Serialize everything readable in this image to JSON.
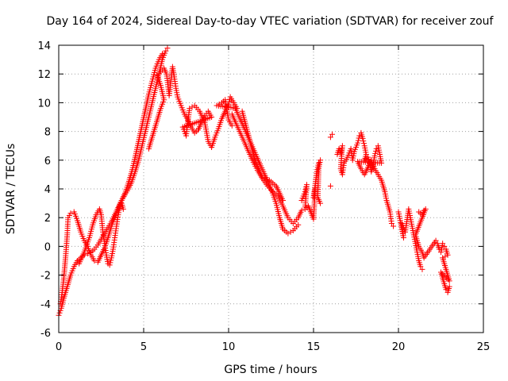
{
  "chart_data": {
    "type": "scatter",
    "title": "Day 164 of 2024, Sidereal Day-to-day VTEC variation (SDTVAR) for receiver zouf",
    "xlabel": "GPS time / hours",
    "ylabel": "SDTVAR / TECUs",
    "xlim": [
      0,
      25
    ],
    "ylim": [
      -6,
      14
    ],
    "xticks": [
      0,
      5,
      10,
      15,
      20,
      25
    ],
    "yticks": [
      -6,
      -4,
      -2,
      0,
      2,
      4,
      6,
      8,
      10,
      12,
      14
    ],
    "grid": true,
    "marker": "+",
    "color": "#ff0000",
    "series": [
      {
        "name": "main band",
        "points": [
          [
            0.0,
            -4.8
          ],
          [
            0.15,
            -4.3
          ],
          [
            0.3,
            -3.6
          ],
          [
            0.5,
            -2.8
          ],
          [
            0.7,
            -2.0
          ],
          [
            0.9,
            -1.4
          ],
          [
            1.1,
            -1.0
          ],
          [
            1.3,
            -0.8
          ],
          [
            1.5,
            -0.6
          ],
          [
            1.7,
            -0.5
          ],
          [
            1.9,
            -0.4
          ],
          [
            2.1,
            -0.2
          ],
          [
            2.3,
            0.1
          ],
          [
            2.5,
            0.5
          ],
          [
            2.7,
            0.9
          ],
          [
            2.9,
            1.3
          ],
          [
            3.1,
            1.7
          ],
          [
            3.3,
            2.2
          ],
          [
            3.5,
            2.7
          ],
          [
            3.7,
            3.2
          ],
          [
            3.9,
            3.6
          ],
          [
            4.1,
            4.0
          ],
          [
            4.3,
            4.5
          ],
          [
            4.5,
            5.2
          ],
          [
            4.7,
            6.0
          ],
          [
            4.9,
            7.0
          ],
          [
            5.1,
            8.0
          ],
          [
            5.3,
            9.0
          ],
          [
            5.5,
            10.0
          ],
          [
            5.7,
            11.0
          ],
          [
            5.9,
            12.0
          ],
          [
            6.1,
            13.0
          ],
          [
            6.3,
            13.6
          ],
          [
            6.4,
            13.8
          ]
        ]
      },
      {
        "name": "upper band",
        "points": [
          [
            0.1,
            -4.0
          ],
          [
            0.2,
            -3.2
          ],
          [
            0.3,
            -2.2
          ],
          [
            0.4,
            -0.8
          ],
          [
            0.5,
            0.8
          ],
          [
            0.55,
            2.0
          ],
          [
            0.7,
            2.3
          ],
          [
            0.9,
            2.4
          ],
          [
            1.1,
            1.8
          ],
          [
            1.3,
            1.0
          ],
          [
            1.5,
            0.4
          ],
          [
            1.7,
            0.0
          ],
          [
            1.9,
            -0.6
          ],
          [
            2.1,
            -1.0
          ],
          [
            2.3,
            -1.1
          ],
          [
            2.5,
            -0.6
          ],
          [
            2.7,
            -0.1
          ],
          [
            2.9,
            0.6
          ],
          [
            3.1,
            1.4
          ],
          [
            3.3,
            2.0
          ],
          [
            3.5,
            2.6
          ],
          [
            3.7,
            3.2
          ],
          [
            3.9,
            3.7
          ],
          [
            4.1,
            4.4
          ],
          [
            4.3,
            5.2
          ],
          [
            4.5,
            6.2
          ],
          [
            4.7,
            7.3
          ],
          [
            4.9,
            8.4
          ],
          [
            5.1,
            9.5
          ],
          [
            5.3,
            10.6
          ],
          [
            5.5,
            11.5
          ],
          [
            5.7,
            12.4
          ],
          [
            5.9,
            13.0
          ],
          [
            6.1,
            13.4
          ]
        ]
      },
      {
        "name": "left loop",
        "points": [
          [
            1.2,
            -1.2
          ],
          [
            1.5,
            -0.4
          ],
          [
            1.8,
            0.6
          ],
          [
            2.0,
            1.5
          ],
          [
            2.2,
            2.2
          ],
          [
            2.4,
            2.6
          ],
          [
            2.5,
            2.2
          ],
          [
            2.6,
            1.0
          ],
          [
            2.7,
            0.2
          ],
          [
            2.8,
            -0.6
          ],
          [
            2.9,
            -1.2
          ],
          [
            3.0,
            -1.3
          ],
          [
            3.1,
            -0.8
          ],
          [
            3.2,
            -0.2
          ],
          [
            3.3,
            0.6
          ],
          [
            3.4,
            1.4
          ],
          [
            3.5,
            2.2
          ],
          [
            3.6,
            2.8
          ],
          [
            3.7,
            3.0
          ],
          [
            3.8,
            2.6
          ]
        ]
      },
      {
        "name": "post-peak cluster",
        "points": [
          [
            5.3,
            6.8
          ],
          [
            5.5,
            7.6
          ],
          [
            5.7,
            8.4
          ],
          [
            5.9,
            9.2
          ],
          [
            6.0,
            9.6
          ],
          [
            6.2,
            10.2
          ],
          [
            6.0,
            11.2
          ],
          [
            5.8,
            11.9
          ],
          [
            6.2,
            12.4
          ],
          [
            6.35,
            12.0
          ],
          [
            6.5,
            10.5
          ],
          [
            6.7,
            12.5
          ],
          [
            6.8,
            11.8
          ],
          [
            6.9,
            11.0
          ],
          [
            7.0,
            10.4
          ],
          [
            7.2,
            9.8
          ],
          [
            7.4,
            9.2
          ],
          [
            7.6,
            8.8
          ],
          [
            7.8,
            8.3
          ],
          [
            8.0,
            7.9
          ],
          [
            8.2,
            8.1
          ],
          [
            8.4,
            8.6
          ],
          [
            8.6,
            9.1
          ],
          [
            8.8,
            9.4
          ],
          [
            9.0,
            9.0
          ],
          [
            7.3,
            8.3
          ],
          [
            7.5,
            7.7
          ],
          [
            7.7,
            9.6
          ],
          [
            8.0,
            9.8
          ],
          [
            8.3,
            9.4
          ],
          [
            8.6,
            8.6
          ],
          [
            8.8,
            7.3
          ],
          [
            9.0,
            6.9
          ],
          [
            9.2,
            7.6
          ],
          [
            9.4,
            8.2
          ],
          [
            9.6,
            8.9
          ],
          [
            9.8,
            9.4
          ],
          [
            10.0,
            9.9
          ],
          [
            10.1,
            10.4
          ],
          [
            10.3,
            10.0
          ],
          [
            10.5,
            9.6
          ],
          [
            9.3,
            9.8
          ],
          [
            9.6,
            10.0
          ],
          [
            9.8,
            10.2
          ],
          [
            10.0,
            8.8
          ],
          [
            10.2,
            8.4
          ]
        ]
      },
      {
        "name": "descent bands",
        "points": [
          [
            10.2,
            9.2
          ],
          [
            10.5,
            8.4
          ],
          [
            10.8,
            7.6
          ],
          [
            11.1,
            6.8
          ],
          [
            11.4,
            6.0
          ],
          [
            11.7,
            5.3
          ],
          [
            12.0,
            4.7
          ],
          [
            12.3,
            4.2
          ],
          [
            12.6,
            3.8
          ],
          [
            12.9,
            3.5
          ],
          [
            13.2,
            2.8
          ],
          [
            13.5,
            2.0
          ],
          [
            13.8,
            1.6
          ],
          [
            14.1,
            2.0
          ],
          [
            14.3,
            2.5
          ],
          [
            10.4,
            9.6
          ],
          [
            10.7,
            8.8
          ],
          [
            11.0,
            8.0
          ],
          [
            11.3,
            7.2
          ],
          [
            11.6,
            6.4
          ],
          [
            11.9,
            5.6
          ],
          [
            12.2,
            4.8
          ],
          [
            12.5,
            4.0
          ],
          [
            12.8,
            3.0
          ],
          [
            13.0,
            2.0
          ],
          [
            13.2,
            1.2
          ],
          [
            13.5,
            0.9
          ],
          [
            13.8,
            1.1
          ],
          [
            14.1,
            1.5
          ],
          [
            10.8,
            9.4
          ],
          [
            11.2,
            7.6
          ],
          [
            11.6,
            5.8
          ],
          [
            12.0,
            4.8
          ],
          [
            12.4,
            4.6
          ],
          [
            12.8,
            4.2
          ],
          [
            13.2,
            3.2
          ]
        ]
      },
      {
        "name": "scattered segments",
        "points": [
          [
            14.3,
            3.2
          ],
          [
            14.5,
            3.8
          ],
          [
            14.6,
            4.3
          ],
          [
            14.5,
            2.6
          ],
          [
            14.7,
            2.8
          ],
          [
            15.0,
            1.9
          ],
          [
            15.1,
            4.0
          ],
          [
            15.0,
            3.4
          ],
          [
            15.2,
            5.2
          ],
          [
            15.3,
            5.8
          ],
          [
            15.4,
            6.0
          ],
          [
            15.3,
            5.4
          ],
          [
            15.25,
            3.4
          ],
          [
            15.4,
            3.0
          ],
          [
            16.0,
            7.6
          ],
          [
            16.1,
            7.8
          ],
          [
            16.0,
            4.2
          ],
          [
            16.4,
            6.4
          ],
          [
            16.5,
            6.8
          ],
          [
            16.6,
            6.5
          ],
          [
            16.7,
            7.0
          ],
          [
            16.6,
            5.4
          ],
          [
            16.7,
            5.0
          ],
          [
            16.8,
            5.8
          ],
          [
            17.0,
            6.2
          ],
          [
            17.2,
            6.8
          ],
          [
            17.3,
            6.0
          ],
          [
            17.4,
            6.6
          ],
          [
            17.6,
            7.2
          ],
          [
            17.7,
            7.7
          ],
          [
            17.8,
            7.9
          ],
          [
            17.9,
            7.5
          ],
          [
            18.0,
            7.0
          ],
          [
            18.1,
            6.4
          ],
          [
            18.0,
            6.0
          ],
          [
            18.2,
            6.2
          ],
          [
            18.3,
            5.8
          ],
          [
            18.4,
            5.2
          ],
          [
            18.5,
            5.6
          ],
          [
            18.6,
            6.3
          ],
          [
            18.7,
            6.8
          ],
          [
            18.8,
            7.0
          ],
          [
            18.9,
            6.4
          ],
          [
            19.0,
            5.8
          ],
          [
            17.6,
            5.9
          ],
          [
            17.8,
            5.4
          ],
          [
            18.0,
            5.0
          ],
          [
            18.2,
            5.5
          ],
          [
            18.4,
            6.0
          ],
          [
            18.6,
            5.4
          ],
          [
            18.8,
            5.0
          ],
          [
            19.0,
            4.6
          ],
          [
            19.1,
            4.2
          ],
          [
            19.2,
            3.8
          ],
          [
            19.3,
            3.2
          ],
          [
            19.4,
            2.8
          ],
          [
            19.5,
            2.4
          ],
          [
            19.6,
            1.6
          ],
          [
            19.7,
            1.4
          ]
        ]
      },
      {
        "name": "late segments",
        "points": [
          [
            20.0,
            2.4
          ],
          [
            20.1,
            1.8
          ],
          [
            20.2,
            1.2
          ],
          [
            20.3,
            0.6
          ],
          [
            20.2,
            1.6
          ],
          [
            20.4,
            1.0
          ],
          [
            20.6,
            2.6
          ],
          [
            20.7,
            2.0
          ],
          [
            20.8,
            1.4
          ],
          [
            20.9,
            0.8
          ],
          [
            21.0,
            0.2
          ],
          [
            21.1,
            -0.4
          ],
          [
            21.2,
            -1.0
          ],
          [
            21.3,
            -1.4
          ],
          [
            21.4,
            -1.6
          ],
          [
            21.2,
            2.4
          ],
          [
            21.4,
            2.2
          ],
          [
            21.5,
            2.5
          ],
          [
            21.6,
            2.6
          ],
          [
            21.0,
            0.8
          ],
          [
            21.1,
            0.4
          ],
          [
            21.2,
            0.0
          ],
          [
            21.4,
            -0.4
          ],
          [
            21.5,
            -0.8
          ],
          [
            22.2,
            0.4
          ],
          [
            22.3,
            0.2
          ],
          [
            22.4,
            -0.2
          ],
          [
            22.5,
            -0.4
          ],
          [
            22.6,
            0.2
          ],
          [
            22.7,
            0.0
          ],
          [
            22.8,
            -0.2
          ],
          [
            22.9,
            -0.6
          ],
          [
            22.6,
            -0.8
          ],
          [
            22.7,
            -1.2
          ],
          [
            22.8,
            -1.6
          ],
          [
            22.9,
            -2.0
          ],
          [
            23.0,
            -2.4
          ],
          [
            22.5,
            -1.8
          ],
          [
            22.6,
            -2.2
          ],
          [
            22.7,
            -2.6
          ],
          [
            22.8,
            -3.0
          ],
          [
            22.9,
            -3.2
          ],
          [
            23.0,
            -2.8
          ]
        ]
      }
    ]
  }
}
